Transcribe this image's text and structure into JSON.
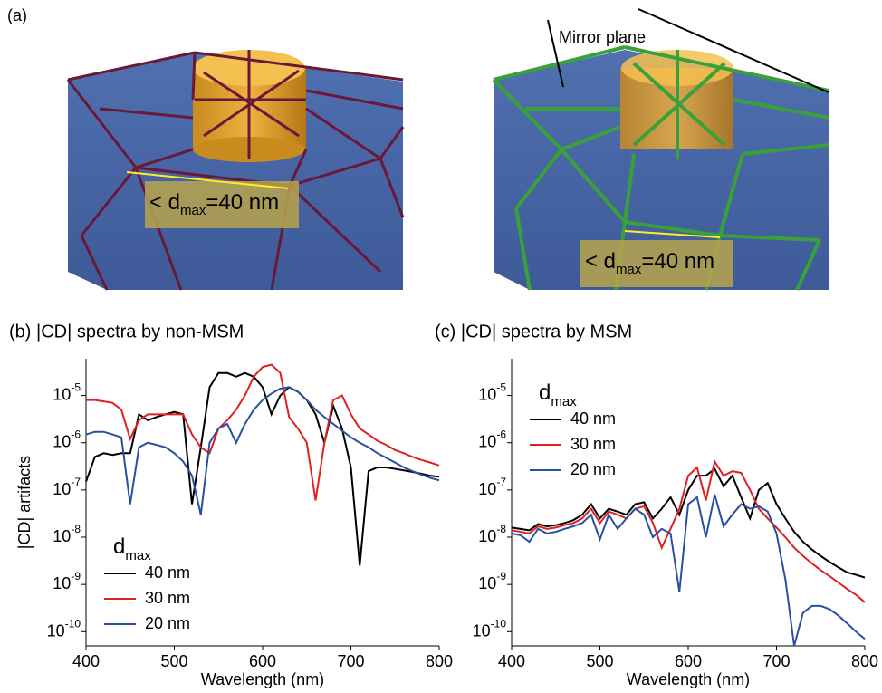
{
  "panel_a": {
    "label": "(a)",
    "mirror_plane": "Mirror plane",
    "left_annotation": {
      "prefix": "< d",
      "subscript": "max",
      "suffix": "=40 nm"
    },
    "right_annotation": {
      "prefix": "< d",
      "subscript": "max",
      "suffix": "=40 nm"
    }
  },
  "chart_data": [
    {
      "type": "line",
      "title": "(b) |CD| spectra by non-MSM",
      "x_label": "Wavelength (nm)",
      "y_label": "|CD| artifacts",
      "log_y": true,
      "legend": "lower left",
      "legend_title": "d",
      "legend_title_subscript": "max",
      "xlim": [
        400,
        800
      ],
      "xticks": [
        400,
        500,
        600,
        700,
        800
      ],
      "ylim": [
        5e-11,
        6e-05
      ],
      "yticks": [
        {
          "value": 1e-10,
          "label": "10",
          "exponent": "-10"
        },
        {
          "value": 1e-09,
          "label": "10",
          "exponent": "-9"
        },
        {
          "value": 1e-08,
          "label": "10",
          "exponent": "-8"
        },
        {
          "value": 1e-07,
          "label": "10",
          "exponent": "-7"
        },
        {
          "value": 1e-06,
          "label": "10",
          "exponent": "-6"
        },
        {
          "value": 1e-05,
          "label": "10",
          "exponent": "-5"
        }
      ],
      "x": [
        400,
        410,
        420,
        430,
        440,
        450,
        460,
        470,
        480,
        490,
        500,
        510,
        520,
        530,
        540,
        550,
        560,
        570,
        580,
        590,
        600,
        610,
        620,
        630,
        640,
        650,
        660,
        670,
        680,
        690,
        700,
        710,
        720,
        730,
        740,
        750,
        760,
        770,
        780,
        790,
        800
      ],
      "series": [
        {
          "name": "40 nm",
          "color": "#000000",
          "values": [
            1.5e-07,
            5e-07,
            6e-07,
            5.5e-07,
            6e-07,
            6e-07,
            4e-06,
            3e-06,
            3.5e-06,
            4e-06,
            4.5e-06,
            4e-06,
            5e-08,
            8e-07,
            1.5e-05,
            3e-05,
            3e-05,
            2.5e-05,
            3e-05,
            2.5e-05,
            1.5e-05,
            4e-06,
            1e-05,
            1.5e-05,
            1.2e-05,
            8e-06,
            4e-06,
            1e-06,
            6e-06,
            2e-06,
            3e-07,
            2.5e-09,
            2.5e-07,
            3e-07,
            3e-07,
            2.8e-07,
            2.6e-07,
            2.4e-07,
            2.2e-07,
            2e-07,
            1.9e-07
          ]
        },
        {
          "name": "30 nm",
          "color": "#e02020",
          "values": [
            8e-06,
            8e-06,
            7.5e-06,
            7e-06,
            5e-06,
            1.2e-06,
            3e-06,
            4e-06,
            4e-06,
            4e-06,
            4e-06,
            4e-06,
            1.5e-06,
            8e-07,
            6e-07,
            2e-06,
            3e-06,
            5e-06,
            1e-05,
            2.5e-05,
            4e-05,
            4.5e-05,
            3e-05,
            3.5e-06,
            2e-06,
            1e-06,
            6e-08,
            1e-06,
            8e-06,
            1e-05,
            4e-06,
            2e-06,
            1.5e-06,
            1.1e-06,
            9e-07,
            7e-07,
            6e-07,
            5e-07,
            4.3e-07,
            3.8e-07,
            3.3e-07
          ]
        },
        {
          "name": "20 nm",
          "color": "#2850a0",
          "values": [
            1.5e-06,
            1.7e-06,
            1.7e-06,
            1.5e-06,
            1.3e-06,
            5e-08,
            8e-07,
            1e-06,
            9e-07,
            8e-07,
            6e-07,
            4e-07,
            2e-07,
            3e-08,
            1e-06,
            2e-06,
            2.5e-06,
            1e-06,
            2.5e-06,
            5e-06,
            8e-06,
            1.1e-05,
            1.4e-05,
            1.5e-05,
            1.2e-05,
            8e-06,
            5e-06,
            3.5e-06,
            2.5e-06,
            1.8e-06,
            1.3e-06,
            1e-06,
            8e-07,
            6e-07,
            4.8e-07,
            3.8e-07,
            3e-07,
            2.5e-07,
            2.1e-07,
            1.8e-07,
            1.6e-07
          ]
        }
      ]
    },
    {
      "type": "line",
      "title": "(c) |CD| spectra by MSM",
      "x_label": "Wavelength (nm)",
      "log_y": true,
      "legend": "upper left",
      "legend_title": "d",
      "legend_title_subscript": "max",
      "xlim": [
        400,
        800
      ],
      "xticks": [
        400,
        500,
        600,
        700,
        800
      ],
      "ylim": [
        5e-11,
        6e-05
      ],
      "yticks": [
        {
          "value": 1e-10,
          "label": "10",
          "exponent": "-10"
        },
        {
          "value": 1e-09,
          "label": "10",
          "exponent": "-9"
        },
        {
          "value": 1e-08,
          "label": "10",
          "exponent": "-8"
        },
        {
          "value": 1e-07,
          "label": "10",
          "exponent": "-7"
        },
        {
          "value": 1e-06,
          "label": "10",
          "exponent": "-6"
        },
        {
          "value": 1e-05,
          "label": "10",
          "exponent": "-5"
        }
      ],
      "x": [
        400,
        410,
        420,
        430,
        440,
        450,
        460,
        470,
        480,
        490,
        500,
        510,
        520,
        530,
        540,
        550,
        560,
        570,
        580,
        590,
        600,
        610,
        620,
        630,
        640,
        650,
        660,
        670,
        680,
        690,
        700,
        710,
        720,
        730,
        740,
        750,
        760,
        770,
        780,
        790,
        800
      ],
      "series": [
        {
          "name": "40 nm",
          "color": "#000000",
          "values": [
            1.6e-08,
            1.5e-08,
            1.4e-08,
            1.9e-08,
            1.7e-08,
            1.8e-08,
            2e-08,
            2.3e-08,
            3e-08,
            5e-08,
            2.5e-08,
            4e-08,
            3.5e-08,
            3e-08,
            5e-08,
            5.5e-08,
            2.5e-08,
            4e-08,
            7e-08,
            3e-08,
            1e-07,
            2e-07,
            2e-07,
            2.8e-07,
            1.2e-07,
            2e-07,
            7e-08,
            2.5e-08,
            1e-07,
            1.4e-07,
            5e-08,
            2.5e-08,
            1.3e-08,
            8e-09,
            5.5e-09,
            4e-09,
            3e-09,
            2.3e-09,
            1.8e-09,
            1.6e-09,
            1.4e-09
          ]
        },
        {
          "name": "30 nm",
          "color": "#e02020",
          "values": [
            1.4e-08,
            1.3e-08,
            1.2e-08,
            1.7e-08,
            1.5e-08,
            1.6e-08,
            1.8e-08,
            2e-08,
            2.5e-08,
            4e-08,
            2e-08,
            3.5e-08,
            3e-08,
            2.5e-08,
            4e-08,
            4.5e-08,
            2e-08,
            6e-09,
            1.5e-08,
            4e-08,
            2e-07,
            3e-07,
            6e-08,
            4e-07,
            2e-07,
            2.5e-07,
            2.3e-07,
            1e-07,
            4e-08,
            2.5e-08,
            1.6e-08,
            1e-08,
            6e-09,
            4e-09,
            2.8e-09,
            2e-09,
            1.5e-09,
            1.1e-09,
            8e-10,
            6e-10,
            4.2e-10
          ]
        },
        {
          "name": "20 nm",
          "color": "#2850a0",
          "values": [
            1.2e-08,
            1.1e-08,
            8e-09,
            1.5e-08,
            1.2e-08,
            1.3e-08,
            1.5e-08,
            1.7e-08,
            2e-08,
            3e-08,
            9e-09,
            3e-08,
            1.5e-08,
            2.5e-08,
            4e-08,
            3e-08,
            1e-08,
            1.5e-08,
            1.2e-08,
            7e-10,
            5e-08,
            7e-08,
            1e-08,
            8e-08,
            1.7e-08,
            3e-08,
            5e-08,
            4e-08,
            4.5e-08,
            3.5e-08,
            1.2e-08,
            1.3e-09,
            5e-11,
            2.5e-10,
            3.5e-10,
            3.5e-10,
            3e-10,
            2.2e-10,
            1.5e-10,
            1e-10,
            7e-11
          ]
        }
      ]
    }
  ]
}
